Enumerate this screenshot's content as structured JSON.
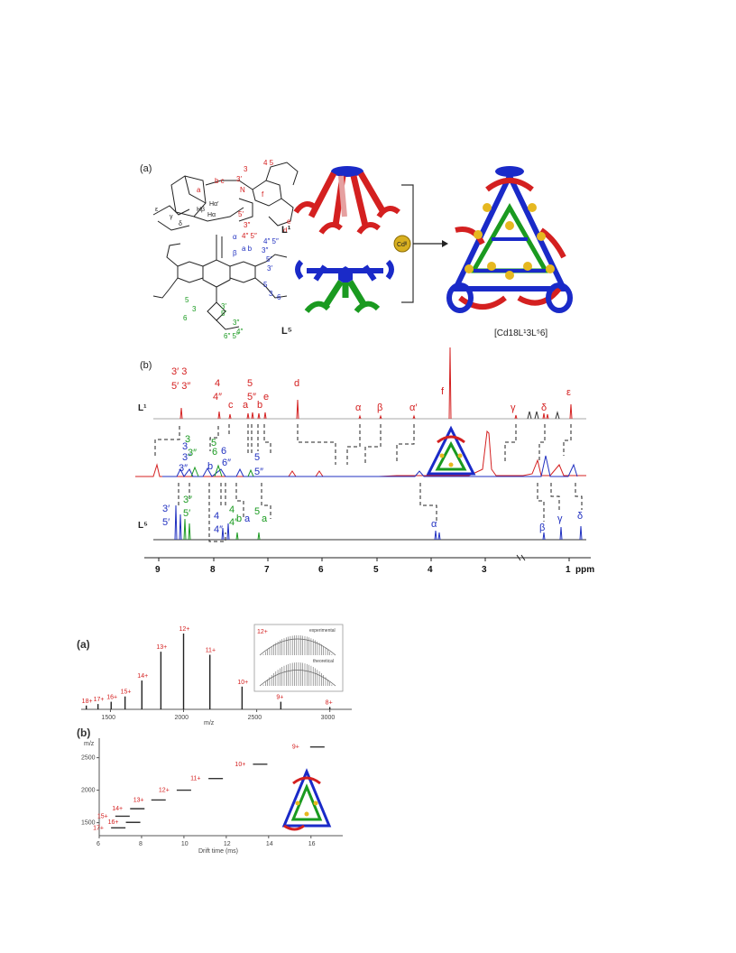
{
  "fig1": {
    "panel_a": "(a)",
    "panel_b": "(b)",
    "l1_label": "L¹",
    "l5_label": "L⁵",
    "cd_label": "Cdᴵᴵ",
    "cage_label": "[Cd18L¹3L⁵6]",
    "trace_l1": "L¹",
    "trace_l5": "L⁵",
    "ppm_ticks": [
      "9",
      "8",
      "7",
      "6",
      "5",
      "4",
      "3",
      "1"
    ],
    "ppm_unit": "ppm",
    "l1_peaks": [
      {
        "text": "3′ 3",
        "color": "#d42020"
      },
      {
        "text": "5′ 3″",
        "color": "#d42020"
      },
      {
        "text": "4",
        "color": "#d42020"
      },
      {
        "text": "4″",
        "color": "#d42020"
      },
      {
        "text": "c",
        "color": "#d42020"
      },
      {
        "text": "5",
        "color": "#d42020"
      },
      {
        "text": "5″",
        "color": "#d42020"
      },
      {
        "text": "a",
        "color": "#d42020"
      },
      {
        "text": "b",
        "color": "#d42020"
      },
      {
        "text": "e",
        "color": "#d42020"
      },
      {
        "text": "d",
        "color": "#d42020"
      },
      {
        "text": "α",
        "color": "#d42020"
      },
      {
        "text": "β",
        "color": "#d42020"
      },
      {
        "text": "α′",
        "color": "#d42020"
      },
      {
        "text": "f",
        "color": "#d42020"
      },
      {
        "text": "γ",
        "color": "#d42020"
      },
      {
        "text": "δ",
        "color": "#d42020"
      },
      {
        "text": "ε",
        "color": "#d42020"
      }
    ],
    "l5_peaks": [
      {
        "text": "3′",
        "color": "#2030c0"
      },
      {
        "text": "5′",
        "color": "#2030c0"
      },
      {
        "text": "3″",
        "color": "#1a9a20"
      },
      {
        "text": "5′",
        "color": "#1a9a20"
      },
      {
        "text": "4",
        "color": "#2030c0"
      },
      {
        "text": "4″",
        "color": "#2030c0"
      },
      {
        "text": "4",
        "color": "#1a9a20"
      },
      {
        "text": "4″",
        "color": "#1a9a20"
      },
      {
        "text": "b",
        "color": "#1a9a20"
      },
      {
        "text": "a",
        "color": "#2030c0"
      },
      {
        "text": "5",
        "color": "#1a9a20"
      },
      {
        "text": "a",
        "color": "#1a9a20"
      },
      {
        "text": "α",
        "color": "#2030c0"
      },
      {
        "text": "β",
        "color": "#2030c0"
      },
      {
        "text": "γ",
        "color": "#2030c0"
      },
      {
        "text": "δ",
        "color": "#2030c0"
      }
    ]
  },
  "fig2": {
    "panel_a": "(a)",
    "panel_b": "(b)",
    "inset_title": "12+",
    "inset_experimental": "experimental",
    "inset_theoretical": "theoretical",
    "charges_a": [
      "18+",
      "17+",
      "16+",
      "15+",
      "14+",
      "13+",
      "12+",
      "11+",
      "10+",
      "9+",
      "8+"
    ],
    "charges_b": [
      "17+",
      "15+",
      "16+",
      "14+",
      "13+",
      "12+",
      "11+",
      "10+",
      "9+"
    ],
    "xlabel_a": "m/z",
    "xlabel_b": "Drift time (ms)",
    "ylabel_b": "m/z"
  },
  "chart_data": [
    {
      "type": "bar",
      "title": "",
      "xlabel": "m/z",
      "ylabel": "",
      "xlim": [
        1300,
        3150
      ],
      "xticks": [
        1500,
        2000,
        2500,
        3000
      ],
      "series": [
        {
          "categories": [
            "18+",
            "17+",
            "16+",
            "15+",
            "14+",
            "13+",
            "12+",
            "11+",
            "10+",
            "9+",
            "8+"
          ],
          "x": [
            1335,
            1415,
            1505,
            1600,
            1715,
            1845,
            2000,
            2180,
            2400,
            2665,
            3000
          ],
          "values": [
            0.05,
            0.07,
            0.1,
            0.17,
            0.38,
            0.76,
            1.0,
            0.72,
            0.3,
            0.1,
            0.03
          ]
        }
      ]
    },
    {
      "type": "scatter",
      "title": "",
      "xlabel": "Drift time (ms)",
      "ylabel": "m/z",
      "xlim": [
        6,
        17.5
      ],
      "ylim": [
        1300,
        2800
      ],
      "xticks": [
        6,
        8,
        10,
        12,
        14,
        16
      ],
      "yticks": [
        1500,
        2000,
        2500
      ],
      "series": [
        {
          "categories": [
            "17+",
            "15+",
            "16+",
            "14+",
            "13+",
            "12+",
            "11+",
            "10+",
            "9+"
          ],
          "x": [
            6.9,
            7.1,
            7.6,
            7.8,
            8.8,
            10.0,
            11.5,
            13.6,
            16.3
          ],
          "values": [
            1420,
            1600,
            1505,
            1715,
            1850,
            2000,
            2180,
            2400,
            2665
          ]
        }
      ]
    }
  ]
}
